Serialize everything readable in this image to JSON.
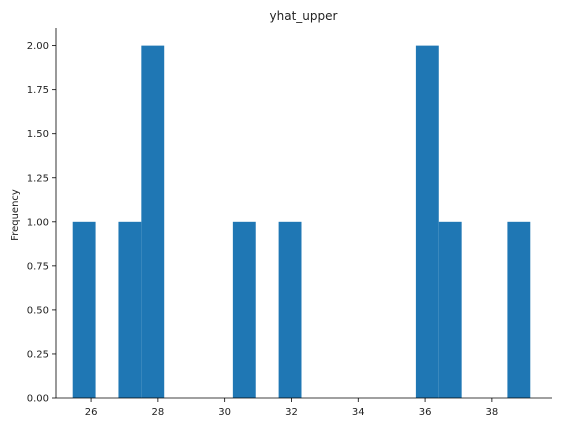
{
  "chart_data": {
    "type": "bar",
    "subtype": "histogram",
    "title": "yhat_upper",
    "xlabel": "",
    "ylabel": "Frequency",
    "bin_width": 0.685,
    "bins": [
      {
        "x0": 25.45,
        "x1": 26.135,
        "count": 1
      },
      {
        "x0": 26.135,
        "x1": 26.82,
        "count": 0
      },
      {
        "x0": 26.82,
        "x1": 27.505,
        "count": 1
      },
      {
        "x0": 27.505,
        "x1": 28.19,
        "count": 2
      },
      {
        "x0": 28.19,
        "x1": 28.875,
        "count": 0
      },
      {
        "x0": 28.875,
        "x1": 29.56,
        "count": 0
      },
      {
        "x0": 29.56,
        "x1": 30.245,
        "count": 0
      },
      {
        "x0": 30.245,
        "x1": 30.93,
        "count": 1
      },
      {
        "x0": 30.93,
        "x1": 31.615,
        "count": 0
      },
      {
        "x0": 31.615,
        "x1": 32.3,
        "count": 1
      },
      {
        "x0": 32.3,
        "x1": 32.985,
        "count": 0
      },
      {
        "x0": 32.985,
        "x1": 33.67,
        "count": 0
      },
      {
        "x0": 33.67,
        "x1": 34.355,
        "count": 0
      },
      {
        "x0": 34.355,
        "x1": 35.04,
        "count": 0
      },
      {
        "x0": 35.04,
        "x1": 35.725,
        "count": 0
      },
      {
        "x0": 35.725,
        "x1": 36.41,
        "count": 2
      },
      {
        "x0": 36.41,
        "x1": 37.095,
        "count": 1
      },
      {
        "x0": 37.095,
        "x1": 37.78,
        "count": 0
      },
      {
        "x0": 37.78,
        "x1": 38.465,
        "count": 0
      },
      {
        "x0": 38.465,
        "x1": 39.15,
        "count": 1
      }
    ],
    "xlim": [
      24.95,
      39.8
    ],
    "ylim": [
      0,
      2.1
    ],
    "xticks": [
      26,
      28,
      30,
      32,
      34,
      36,
      38
    ],
    "xtick_labels": [
      "26",
      "28",
      "30",
      "32",
      "34",
      "36",
      "38"
    ],
    "yticks": [
      0,
      0.25,
      0.5,
      0.75,
      1.0,
      1.25,
      1.5,
      1.75,
      2.0
    ],
    "ytick_labels": [
      "0.00",
      "0.25",
      "0.50",
      "0.75",
      "1.00",
      "1.25",
      "1.50",
      "1.75",
      "2.00"
    ],
    "bar_color": "#1f77b4",
    "grid": false,
    "legend": "none"
  }
}
